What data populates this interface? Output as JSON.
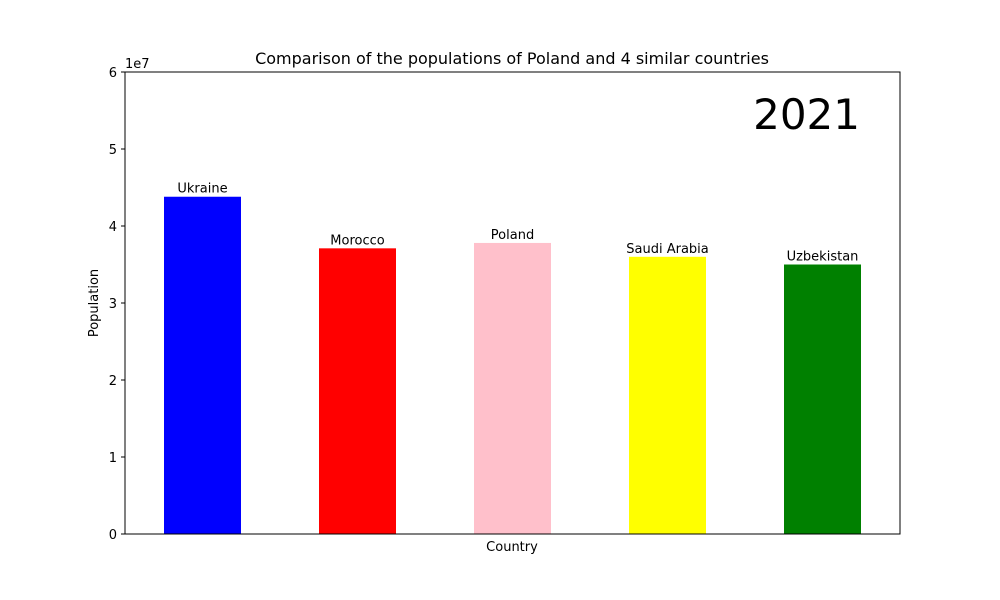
{
  "chart_data": {
    "type": "bar",
    "title": "Comparison of the populations of Poland and 4 similar countries",
    "xlabel": "Country",
    "ylabel": "Population",
    "y_multiplier_label": "1e7",
    "y_tick_labels": [
      "0",
      "1",
      "2",
      "3",
      "4",
      "5",
      "6"
    ],
    "ylim": [
      0,
      60000000
    ],
    "year_label": "2021",
    "grid": false,
    "bars": [
      {
        "label": "Ukraine",
        "value": 43800000,
        "color": "#0000ff"
      },
      {
        "label": "Morocco",
        "value": 37100000,
        "color": "#ff0000"
      },
      {
        "label": "Poland",
        "value": 37800000,
        "color": "#ffc0cb"
      },
      {
        "label": "Saudi Arabia",
        "value": 36000000,
        "color": "#ffff00"
      },
      {
        "label": "Uzbekistan",
        "value": 35000000,
        "color": "#008000"
      }
    ]
  }
}
